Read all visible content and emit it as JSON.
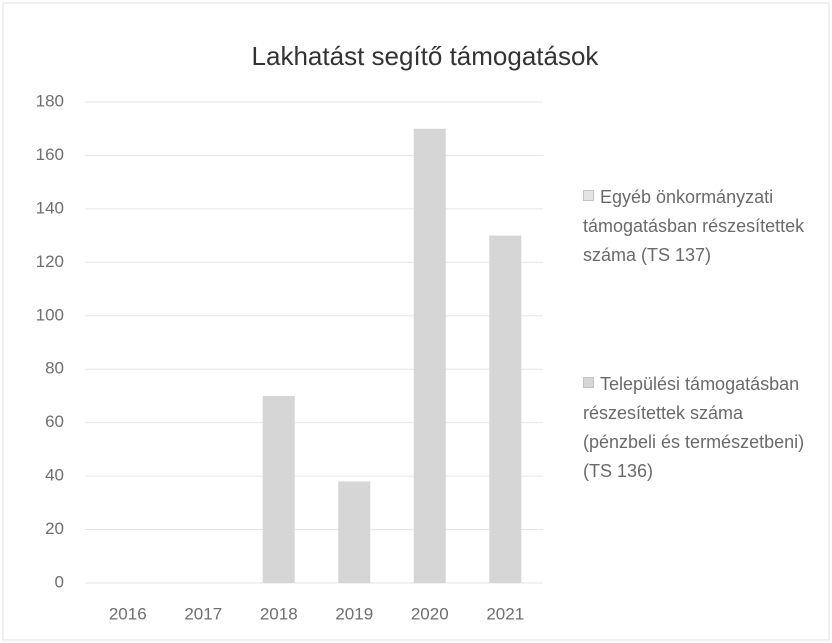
{
  "chart_data": {
    "type": "bar",
    "stacked": true,
    "title": "Lakhatást segítő támogatások",
    "categories": [
      "2016",
      "2017",
      "2018",
      "2019",
      "2020",
      "2021"
    ],
    "series": [
      {
        "name": "Egyéb önkormányzati támogatásban részesítettek száma (TS 137)",
        "color": "#e4e4e4",
        "values": [
          0,
          0,
          0,
          0,
          0,
          0
        ]
      },
      {
        "name": "Települési támogatásban részesítettek száma (pénzbeli és természetbeni) (TS 136)",
        "color": "#d6d6d6",
        "values": [
          0,
          0,
          70,
          38,
          170,
          130
        ]
      }
    ],
    "ylim": [
      0,
      180
    ],
    "yticks": [
      0,
      20,
      40,
      60,
      80,
      100,
      120,
      140,
      160,
      180
    ],
    "grid": true,
    "legend": "right"
  }
}
